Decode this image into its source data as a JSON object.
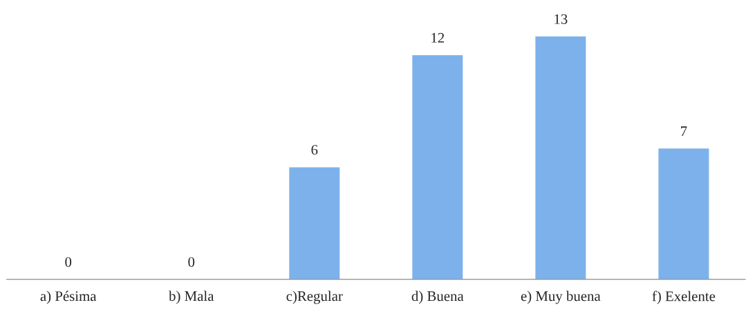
{
  "chart_data": {
    "type": "bar",
    "categories": [
      "a) Pésima",
      "b) Mala",
      "c)Regular",
      "d) Buena",
      "e) Muy buena",
      "f) Exelente"
    ],
    "values": [
      0,
      0,
      6,
      12,
      13,
      7
    ],
    "color": "#7db1ec",
    "data_labels": true,
    "grid": false,
    "legend": false
  }
}
